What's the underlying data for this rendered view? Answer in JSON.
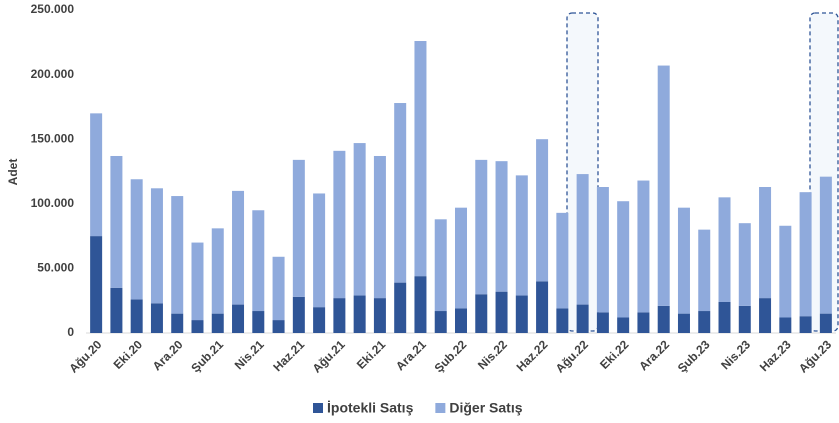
{
  "chart_data": {
    "type": "stacked_bar",
    "y_label": "Adet",
    "categories": [
      "Ağu.20",
      null,
      "Eki.20",
      null,
      "Ara.20",
      null,
      "Şub.21",
      null,
      "Nis.21",
      null,
      "Haz.21",
      null,
      "Ağu.21",
      null,
      "Eki.21",
      null,
      "Ara.21",
      null,
      "Şub.22",
      null,
      "Nis.22",
      null,
      "Haz.22",
      null,
      "Ağu.22",
      null,
      "Eki.22",
      null,
      "Ara.22",
      null,
      "Şub.23",
      null,
      "Nis.23",
      null,
      "Haz.23",
      null,
      "Ağu.23"
    ],
    "series": [
      {
        "name": "İpotekli Satış",
        "color": "#2f5597",
        "values": [
          75000,
          35000,
          26000,
          23000,
          15000,
          10000,
          15000,
          22000,
          17000,
          10000,
          28000,
          20000,
          27000,
          29000,
          27000,
          39000,
          44000,
          17000,
          19000,
          30000,
          32000,
          29000,
          40000,
          19000,
          22000,
          16000,
          12000,
          16000,
          21000,
          15000,
          17000,
          24000,
          21000,
          27000,
          12000,
          13000,
          15000
        ]
      },
      {
        "name": "Diğer Satış",
        "color": "#8faadc",
        "values": [
          95000,
          102000,
          93000,
          89000,
          91000,
          60000,
          66000,
          88000,
          78000,
          49000,
          106000,
          88000,
          114000,
          118000,
          110000,
          139000,
          182000,
          71000,
          78000,
          104000,
          101000,
          93000,
          110000,
          74000,
          101000,
          97000,
          90000,
          102000,
          186000,
          82000,
          63000,
          81000,
          64000,
          86000,
          71000,
          96000,
          106000
        ]
      }
    ],
    "ylim": [
      0,
      250000
    ],
    "yticks": [
      0,
      {
        "value": 50000,
        "label": "50.000"
      },
      {
        "value": 100000,
        "label": "100.000"
      },
      {
        "value": 150000,
        "label": "150.000"
      },
      {
        "value": 200000,
        "label": "200.000"
      },
      {
        "value": 250000,
        "label": "250.000"
      }
    ],
    "legend": "bottom"
  }
}
